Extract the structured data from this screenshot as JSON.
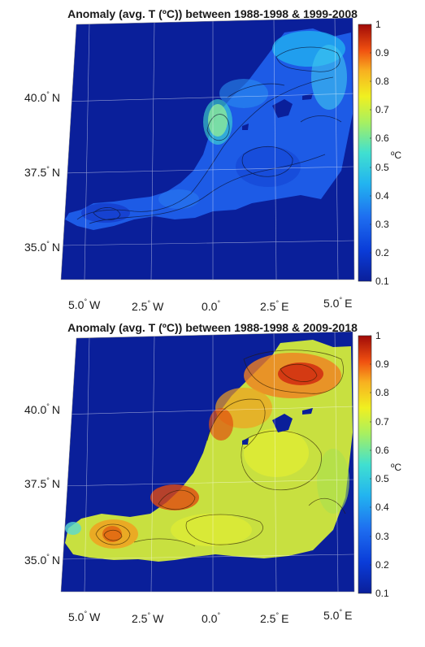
{
  "panels": [
    {
      "title": "Anomaly (avg. T (ºC)) between 1988-1998 & 1999-2008",
      "land_color": "#0a1f9a",
      "sea_base_color": "#1d5be6",
      "lat_labels": [
        {
          "value": "40.0",
          "hemi": "N"
        },
        {
          "value": "37.5",
          "hemi": "N"
        },
        {
          "value": "35.0",
          "hemi": "N"
        }
      ],
      "lon_labels": [
        {
          "value": "5.0",
          "hemi": "W"
        },
        {
          "value": "2.5",
          "hemi": "W"
        },
        {
          "value": "0.0",
          "hemi": ""
        },
        {
          "value": "2.5",
          "hemi": "E"
        },
        {
          "value": "5.0",
          "hemi": "E"
        }
      ],
      "colorbar": {
        "ticks": [
          "1",
          "0.9",
          "0.8",
          "0.7",
          "0.6",
          "0.5",
          "0.4",
          "0.3",
          "0.2",
          "0.1"
        ],
        "unit": "ºC"
      }
    },
    {
      "title": "Anomaly (avg. T (ºC)) between 1988-1998 & 2009-2018",
      "land_color": "#0a1f9a",
      "sea_base_color": "#c8e040",
      "lat_labels": [
        {
          "value": "40.0",
          "hemi": "N"
        },
        {
          "value": "37.5",
          "hemi": "N"
        },
        {
          "value": "35.0",
          "hemi": "N"
        }
      ],
      "lon_labels": [
        {
          "value": "5.0",
          "hemi": "W"
        },
        {
          "value": "2.5",
          "hemi": "W"
        },
        {
          "value": "0.0",
          "hemi": ""
        },
        {
          "value": "2.5",
          "hemi": "E"
        },
        {
          "value": "5.0",
          "hemi": "E"
        }
      ],
      "colorbar": {
        "ticks": [
          "1",
          "0.9",
          "0.8",
          "0.7",
          "0.6",
          "0.5",
          "0.4",
          "0.3",
          "0.2",
          "0.1"
        ],
        "unit": "ºC"
      }
    }
  ]
}
